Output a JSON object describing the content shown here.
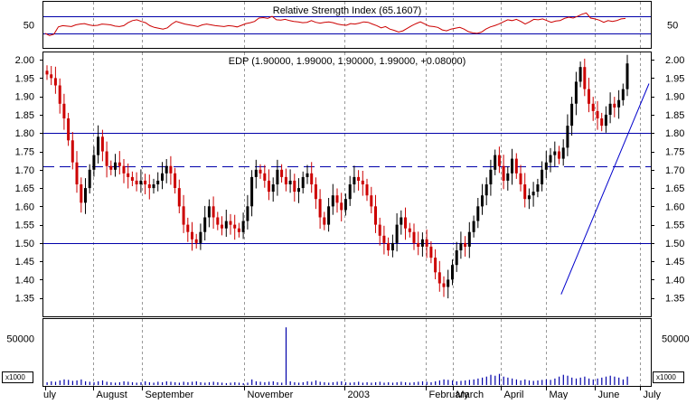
{
  "chart_data": [
    {
      "type": "line",
      "title": "Relative Strength Index (65.1607)",
      "ylim": [
        0,
        100
      ],
      "yticks": [
        50
      ],
      "reference_lines": [
        70,
        30
      ],
      "series": [
        {
          "values": [
            30,
            25,
            28,
            45,
            48,
            47,
            46,
            50,
            52,
            53,
            50,
            48,
            49,
            52,
            51,
            50,
            47,
            46,
            48,
            55,
            60,
            62,
            58,
            55,
            48,
            44,
            42,
            40,
            43,
            52,
            58,
            55,
            52,
            50,
            48,
            46,
            50,
            52,
            50,
            48,
            47,
            46,
            48,
            47,
            45,
            49,
            53,
            55,
            58,
            66,
            67,
            65,
            70,
            62,
            61,
            63,
            60,
            58,
            57,
            55,
            56,
            60,
            56,
            54,
            56,
            57,
            55,
            52,
            50,
            49,
            53,
            52,
            54,
            57,
            56,
            52,
            48,
            43,
            46,
            40,
            37,
            33,
            36,
            42,
            48,
            53,
            57,
            52,
            47,
            46,
            44,
            38,
            36,
            40,
            42,
            44,
            40,
            34,
            31,
            30,
            33,
            40,
            45,
            48,
            52,
            57,
            62,
            60,
            63,
            58,
            52,
            57,
            63,
            62,
            64,
            60,
            56,
            59,
            60,
            65,
            68,
            66,
            70,
            75,
            78,
            66,
            64,
            61,
            56,
            60,
            58,
            60,
            64,
            65
          ]
        }
      ]
    },
    {
      "type": "candlestick",
      "title": "EDP (1.90000, 1.99000, 1.90000, 1.99000, +0.08000)",
      "ylim": [
        1.3,
        2.02
      ],
      "yticks": [
        "2.00",
        "1.95",
        "1.90",
        "1.85",
        "1.80",
        "1.75",
        "1.70",
        "1.65",
        "1.60",
        "1.55",
        "1.50",
        "1.45",
        "1.40",
        "1.35"
      ],
      "horizontal_lines": [
        1.8,
        1.5
      ],
      "dashed_lines": [
        1.71
      ],
      "trendline": {
        "from": [
          0.8545,
          1.36
        ],
        "to": [
          1.0,
          1.935
        ]
      },
      "close": [
        1.96,
        1.95,
        1.93,
        1.88,
        1.84,
        1.78,
        1.72,
        1.66,
        1.61,
        1.65,
        1.7,
        1.74,
        1.79,
        1.75,
        1.71,
        1.7,
        1.72,
        1.71,
        1.69,
        1.68,
        1.67,
        1.66,
        1.67,
        1.66,
        1.65,
        1.66,
        1.67,
        1.69,
        1.71,
        1.69,
        1.65,
        1.6,
        1.55,
        1.53,
        1.51,
        1.5,
        1.53,
        1.57,
        1.6,
        1.57,
        1.55,
        1.54,
        1.56,
        1.55,
        1.54,
        1.53,
        1.56,
        1.6,
        1.68,
        1.7,
        1.69,
        1.67,
        1.64,
        1.66,
        1.7,
        1.68,
        1.66,
        1.67,
        1.64,
        1.65,
        1.68,
        1.69,
        1.66,
        1.62,
        1.57,
        1.55,
        1.6,
        1.63,
        1.61,
        1.59,
        1.62,
        1.66,
        1.68,
        1.67,
        1.66,
        1.63,
        1.6,
        1.55,
        1.52,
        1.5,
        1.48,
        1.5,
        1.55,
        1.57,
        1.54,
        1.53,
        1.5,
        1.49,
        1.51,
        1.49,
        1.46,
        1.42,
        1.39,
        1.38,
        1.4,
        1.44,
        1.48,
        1.5,
        1.49,
        1.53,
        1.56,
        1.6,
        1.63,
        1.66,
        1.7,
        1.74,
        1.71,
        1.67,
        1.69,
        1.73,
        1.69,
        1.66,
        1.62,
        1.63,
        1.64,
        1.66,
        1.7,
        1.72,
        1.74,
        1.75,
        1.73,
        1.76,
        1.82,
        1.88,
        1.94,
        1.98,
        1.92,
        1.88,
        1.86,
        1.84,
        1.82,
        1.85,
        1.88,
        1.87,
        1.89,
        1.92,
        1.99
      ]
    },
    {
      "type": "bar",
      "title": "",
      "yticks": [
        50000
      ],
      "unit_label": "x1000",
      "values": [
        3000,
        4000,
        3500,
        5000,
        6000,
        5500,
        4500,
        5000,
        6000,
        4000,
        3500,
        3000,
        4000,
        5000,
        3500,
        3000,
        2500,
        3000,
        4000,
        3500,
        3000,
        2500,
        3000,
        4000,
        3000,
        2500,
        3500,
        3000,
        4000,
        3500,
        3000,
        2500,
        3500,
        3000,
        3500,
        4000,
        3000,
        2500,
        3000,
        3500,
        3000,
        2500,
        2000,
        2500,
        3000,
        2500,
        2000,
        2500,
        6000,
        4000,
        3500,
        3000,
        3500,
        4000,
        3000,
        2500,
        62000,
        4000,
        3000,
        2500,
        3000,
        4000,
        3500,
        5000,
        3500,
        3000,
        2500,
        3000,
        3500,
        4000,
        3000,
        2500,
        3000,
        3500,
        2500,
        3000,
        2500,
        3000,
        3500,
        2500,
        3000,
        2500,
        3000,
        3500,
        3000,
        2500,
        3000,
        3500,
        4000,
        3500,
        3000,
        4000,
        5000,
        6000,
        5500,
        5000,
        4000,
        4500,
        5000,
        5500,
        6000,
        7000,
        8000,
        9000,
        11000,
        10000,
        12000,
        9000,
        8000,
        7000,
        6000,
        5000,
        6000,
        5000,
        4500,
        5000,
        5500,
        6000,
        5500,
        7000,
        9000,
        11000,
        10000,
        8000,
        7000,
        8000,
        9000,
        7000,
        6000,
        7000,
        8000,
        9000,
        10000,
        9000,
        8000,
        6000,
        9000
      ]
    }
  ],
  "x_axis": {
    "month_labels": [
      "uly",
      "August",
      "September",
      "November",
      "2003",
      "February",
      "March",
      "April",
      "May",
      "June",
      "July"
    ],
    "month_positions": [
      0.0,
      0.08,
      0.16,
      0.33,
      0.495,
      0.63,
      0.675,
      0.755,
      0.83,
      0.91,
      0.985
    ]
  },
  "colors": {
    "background": "#ffffff",
    "reference_line": "#0000aa",
    "rsi_line": "#cc0000",
    "candle_up": "#000000",
    "candle_down": "#cc0000",
    "trendline": "#0000cc",
    "volume_bar": "#0000aa",
    "grid": "#999999"
  }
}
